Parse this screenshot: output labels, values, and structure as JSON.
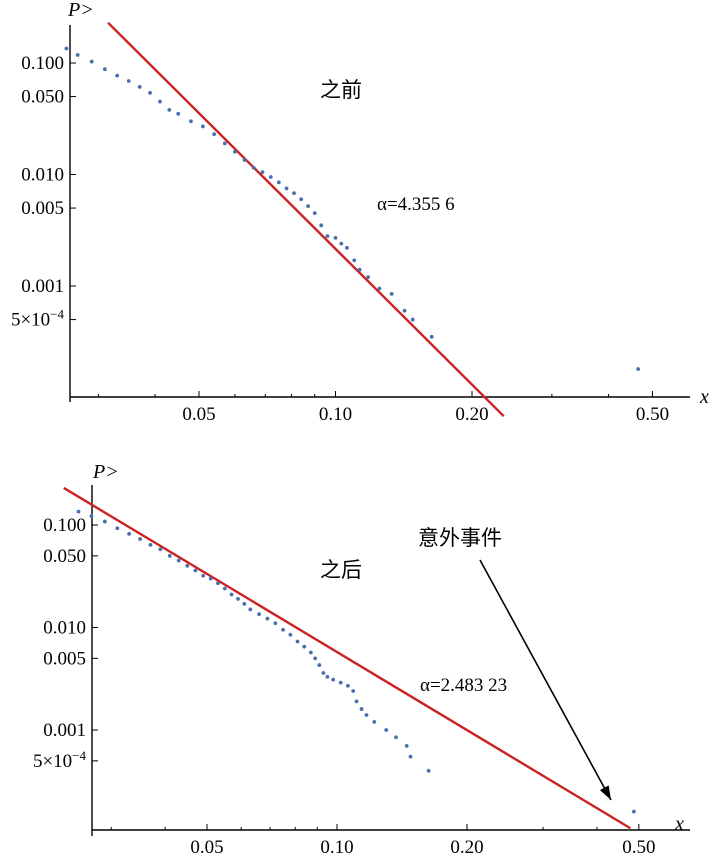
{
  "chart_data": [
    {
      "type": "scatter",
      "id": "before",
      "annotation": "之前",
      "fit_label": "α=4.355 6",
      "xlabel": "x",
      "ylabel": "P>",
      "xscale": "log",
      "yscale": "log",
      "x_ticks": [
        {
          "value": 0.05,
          "label": "0.05"
        },
        {
          "value": 0.1,
          "label": "0.10"
        },
        {
          "value": 0.2,
          "label": "0.20"
        },
        {
          "value": 0.5,
          "label": "0.50"
        }
      ],
      "y_ticks": [
        {
          "value": 0.1,
          "label": "0.100"
        },
        {
          "value": 0.05,
          "label": "0.050"
        },
        {
          "value": 0.01,
          "label": "0.010"
        },
        {
          "value": 0.005,
          "label": "0.005"
        },
        {
          "value": 0.001,
          "label": "0.001"
        },
        {
          "value": 0.0005,
          "label": "5×10",
          "sup": "−4"
        }
      ],
      "fit_line": {
        "x": [
          0.0315,
          0.235
        ],
        "y": [
          0.23,
          6.8e-05
        ],
        "color": "#cc2222"
      },
      "series": [
        {
          "color": "#4a6fb0",
          "x": [
            0.0255,
            0.027,
            0.029,
            0.031,
            0.033,
            0.035,
            0.037,
            0.039,
            0.041,
            0.043,
            0.045,
            0.048,
            0.051,
            0.054,
            0.057,
            0.06,
            0.063,
            0.066,
            0.069,
            0.072,
            0.075,
            0.078,
            0.081,
            0.084,
            0.087,
            0.09,
            0.093,
            0.096,
            0.1,
            0.103,
            0.106,
            0.11,
            0.113,
            0.118,
            0.125,
            0.133,
            0.142,
            0.148,
            0.163,
            0.465
          ],
          "y": [
            0.135,
            0.118,
            0.103,
            0.088,
            0.077,
            0.069,
            0.061,
            0.054,
            0.045,
            0.038,
            0.035,
            0.03,
            0.027,
            0.023,
            0.019,
            0.016,
            0.0135,
            0.0115,
            0.0105,
            0.0095,
            0.0085,
            0.0075,
            0.0068,
            0.006,
            0.0052,
            0.0045,
            0.0035,
            0.0028,
            0.0027,
            0.0024,
            0.0022,
            0.0017,
            0.0014,
            0.0012,
            0.00095,
            0.00085,
            0.0006,
            0.0005,
            0.00035,
            0.00018
          ]
        }
      ]
    },
    {
      "type": "scatter",
      "id": "after",
      "annotation": "之后",
      "fit_label": "α=2.483 23",
      "event_label": "意外事件",
      "xlabel": "x",
      "ylabel": "P>",
      "xscale": "log",
      "yscale": "log",
      "x_ticks": [
        {
          "value": 0.05,
          "label": "0.05"
        },
        {
          "value": 0.1,
          "label": "0.10"
        },
        {
          "value": 0.2,
          "label": "0.20"
        },
        {
          "value": 0.5,
          "label": "0.50"
        }
      ],
      "y_ticks": [
        {
          "value": 0.1,
          "label": "0.100"
        },
        {
          "value": 0.05,
          "label": "0.050"
        },
        {
          "value": 0.01,
          "label": "0.010"
        },
        {
          "value": 0.005,
          "label": "0.005"
        },
        {
          "value": 0.001,
          "label": "0.001"
        },
        {
          "value": 0.0005,
          "label": "5×10",
          "sup": "−4"
        }
      ],
      "fit_line": {
        "x": [
          0.0233,
          0.478
        ],
        "y": [
          0.23,
          0.00011
        ],
        "color": "#cc2222"
      },
      "series": [
        {
          "color": "#4a6fb0",
          "x": [
            0.0252,
            0.027,
            0.029,
            0.031,
            0.033,
            0.035,
            0.037,
            0.039,
            0.041,
            0.043,
            0.045,
            0.047,
            0.049,
            0.051,
            0.053,
            0.055,
            0.057,
            0.059,
            0.061,
            0.063,
            0.066,
            0.069,
            0.072,
            0.075,
            0.078,
            0.081,
            0.084,
            0.087,
            0.089,
            0.091,
            0.093,
            0.095,
            0.098,
            0.102,
            0.106,
            0.109,
            0.111,
            0.114,
            0.117,
            0.122,
            0.13,
            0.137,
            0.145,
            0.148,
            0.163,
            0.487
          ],
          "y": [
            0.135,
            0.122,
            0.108,
            0.093,
            0.082,
            0.073,
            0.064,
            0.058,
            0.05,
            0.045,
            0.04,
            0.036,
            0.032,
            0.03,
            0.027,
            0.024,
            0.021,
            0.019,
            0.017,
            0.015,
            0.0135,
            0.0122,
            0.011,
            0.0095,
            0.0085,
            0.0073,
            0.0065,
            0.0057,
            0.005,
            0.0043,
            0.0036,
            0.0033,
            0.0031,
            0.0029,
            0.0027,
            0.0024,
            0.0019,
            0.0016,
            0.0014,
            0.0012,
            0.001,
            0.00085,
            0.0007,
            0.00055,
            0.0004,
            0.00016
          ]
        }
      ]
    }
  ]
}
